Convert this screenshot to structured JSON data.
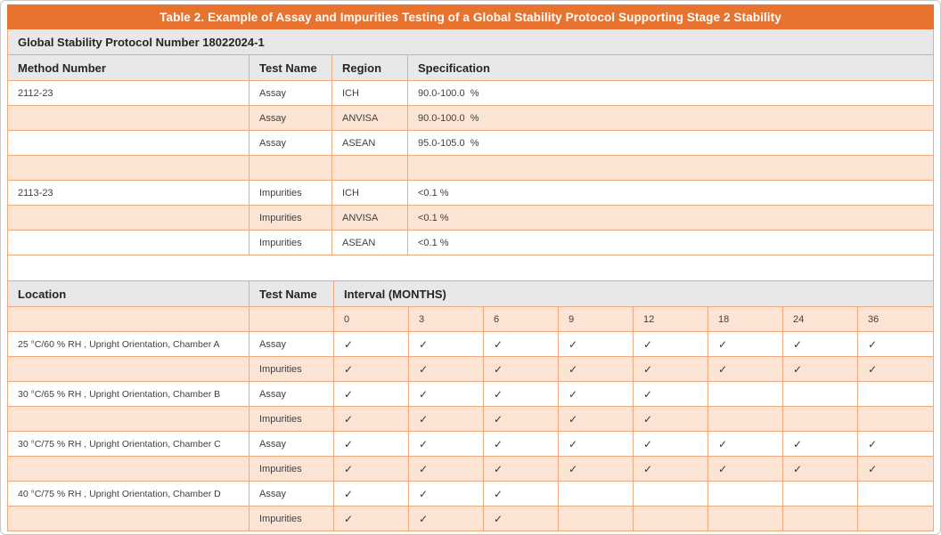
{
  "title": "Table 2. Example of Assay and Impurities Testing of a Global Stability Protocol Supporting Stage 2 Stability",
  "protocol_header": "Global Stability Protocol Number 18022024-1",
  "methods_table": {
    "headers": [
      "Method Number",
      "Test Name",
      "Region",
      "Specification"
    ],
    "rows": [
      {
        "method": "2112-23",
        "test": "Assay",
        "region": "ICH",
        "spec": "90.0-100.0  %"
      },
      {
        "method": "",
        "test": "Assay",
        "region": "ANVISA",
        "spec": "90.0-100.0  %"
      },
      {
        "method": "",
        "test": "Assay",
        "region": "ASEAN",
        "spec": "95.0-105.0  %"
      },
      {
        "method": "",
        "test": "",
        "region": "",
        "spec": ""
      },
      {
        "method": "2113-23",
        "test": "Impurities",
        "region": "ICH",
        "spec": "<0.1 %"
      },
      {
        "method": "",
        "test": "Impurities",
        "region": "ANVISA",
        "spec": "<0.1 %"
      },
      {
        "method": "",
        "test": "Impurities",
        "region": "ASEAN",
        "spec": "<0.1 %"
      }
    ]
  },
  "schedule_table": {
    "headers": {
      "location": "Location",
      "test": "Test Name",
      "interval": "Interval (MONTHS)"
    },
    "intervals": [
      "0",
      "3",
      "6",
      "9",
      "12",
      "18",
      "24",
      "36"
    ],
    "check_symbol": "✓",
    "rows": [
      {
        "location": "25 °C/60 % RH , Upright Orientation, Chamber A",
        "test": "Assay",
        "checks": [
          1,
          1,
          1,
          1,
          1,
          1,
          1,
          1
        ]
      },
      {
        "location": "",
        "test": "Impurities",
        "checks": [
          1,
          1,
          1,
          1,
          1,
          1,
          1,
          1
        ]
      },
      {
        "location": "30 °C/65 % RH , Upright Orientation, Chamber B",
        "test": "Assay",
        "checks": [
          1,
          1,
          1,
          1,
          1,
          0,
          0,
          0
        ]
      },
      {
        "location": "",
        "test": "Impurities",
        "checks": [
          1,
          1,
          1,
          1,
          1,
          0,
          0,
          0
        ]
      },
      {
        "location": "30 °C/75 % RH , Upright Orientation, Chamber C",
        "test": "Assay",
        "checks": [
          1,
          1,
          1,
          1,
          1,
          1,
          1,
          1
        ]
      },
      {
        "location": "",
        "test": "Impurities",
        "checks": [
          1,
          1,
          1,
          1,
          1,
          1,
          1,
          1
        ]
      },
      {
        "location": "40 °C/75 % RH , Upright Orientation, Chamber D",
        "test": "Assay",
        "checks": [
          1,
          1,
          1,
          0,
          0,
          0,
          0,
          0
        ]
      },
      {
        "location": "",
        "test": "Impurities",
        "checks": [
          1,
          1,
          1,
          0,
          0,
          0,
          0,
          0
        ]
      }
    ]
  },
  "colors": {
    "accent_orange": "#E7732E",
    "row_peach": "#FBE4D4",
    "header_gray": "#E8E7E9",
    "grid_line_orange": "#F0A87C",
    "title_text": "#FFFFFF",
    "body_text": "#3F3F3F",
    "header_text": "#262626"
  }
}
